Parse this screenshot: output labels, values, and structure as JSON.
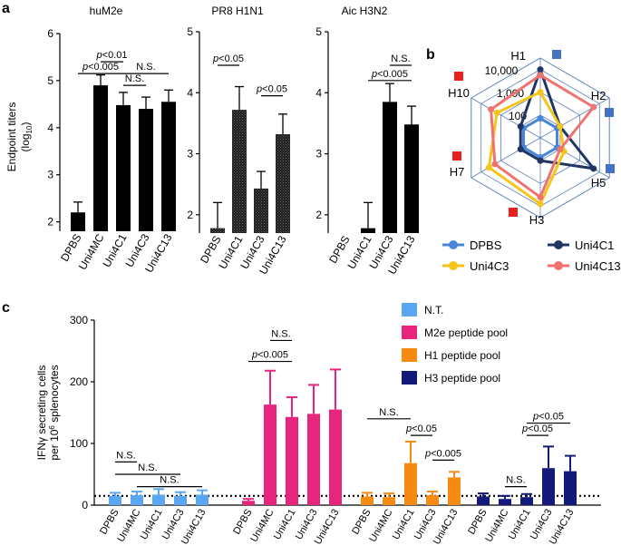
{
  "chart_data": [
    {
      "panel": "a",
      "type": "bar",
      "title": "huM2e",
      "ylabel_line1": "Endpoint titers",
      "ylabel_line2": "(log",
      "ylabel_sub": "10",
      "ylabel_end": ")",
      "ylim": [
        1.8,
        6
      ],
      "yticks": [
        2,
        3,
        4,
        5,
        6
      ],
      "categories": [
        "DPBS",
        "Uni4MC",
        "Uni4C1",
        "Uni4C3",
        "Uni4C13"
      ],
      "values": [
        2.2,
        4.9,
        4.48,
        4.4,
        4.55
      ],
      "errors": [
        0.22,
        0.22,
        0.27,
        0.25,
        0.25
      ],
      "fill": "solid",
      "annotations": [
        {
          "text": "p<0.01",
          "from": 1,
          "to": 2,
          "y": 5.4
        },
        {
          "text": "p<0.005",
          "from": 0,
          "to": 2,
          "y": 5.15
        },
        {
          "text": "N.S.",
          "from": 2,
          "to": 4,
          "y": 5.15
        },
        {
          "text": "N.S.",
          "from": 2,
          "to": 3,
          "y": 4.9
        }
      ]
    },
    {
      "panel": "a",
      "type": "bar",
      "title": "PR8 H1N1",
      "ylim": [
        1.7,
        5
      ],
      "yticks": [
        2,
        3,
        4,
        5
      ],
      "categories": [
        "DPBS",
        "Uni4C1",
        "Uni4C3",
        "Uni4C13"
      ],
      "values": [
        1.78,
        3.72,
        2.43,
        3.32
      ],
      "errors": [
        0.42,
        0.38,
        0.28,
        0.33
      ],
      "fill": "hatched",
      "annotations": [
        {
          "text": "p<0.05",
          "from": 0,
          "to": 1,
          "y": 4.45
        },
        {
          "text": "p<0.05",
          "from": 2,
          "to": 3,
          "y": 3.95
        }
      ]
    },
    {
      "panel": "a",
      "type": "bar",
      "title": "Aic H3N2",
      "ylim": [
        1.7,
        5
      ],
      "yticks": [
        2,
        3,
        4,
        5
      ],
      "categories": [
        "DPBS",
        "Uni4C1",
        "Uni4C3",
        "Uni4C13"
      ],
      "values": [
        1.7,
        1.78,
        3.85,
        3.48
      ],
      "errors": [
        0,
        0.42,
        0.3,
        0.3
      ],
      "fill": "solid",
      "annotations": [
        {
          "text": "p<0.005",
          "from": 1,
          "to": 3,
          "y": 4.2
        },
        {
          "text": "N.S.",
          "from": 2,
          "to": 3,
          "y": 4.45
        }
      ]
    },
    {
      "panel": "b",
      "type": "radar",
      "axes": [
        "H1",
        "H2",
        "H5",
        "H3",
        "H7",
        "H10"
      ],
      "axis_markers": [
        "#4472c4",
        "#4472c4",
        "#4472c4",
        "#e8211f",
        "#e8211f",
        "#e8211f"
      ],
      "rings": [
        "100",
        "1,000",
        "10,000"
      ],
      "ring_log_values": [
        2,
        3,
        4
      ],
      "log_range": [
        1,
        4.5
      ],
      "series": [
        {
          "name": "DPBS",
          "color": "#4a86d9",
          "values_log10": [
            1.85,
            1.85,
            1.85,
            1.85,
            1.85,
            1.85
          ]
        },
        {
          "name": "Uni4C1",
          "color": "#1f3564",
          "values_log10": [
            4.0,
            2.0,
            3.7,
            2.0,
            2.0,
            2.0
          ]
        },
        {
          "name": "Uni4C3",
          "color": "#f5c518",
          "values_log10": [
            3.0,
            2.0,
            2.2,
            3.9,
            3.6,
            3.2
          ]
        },
        {
          "name": "Uni4C13",
          "color": "#ef7370",
          "values_log10": [
            3.75,
            3.7,
            2.0,
            3.6,
            3.3,
            3.5
          ]
        }
      ]
    },
    {
      "panel": "c",
      "type": "bar",
      "ylabel_line1": "IFNγ secreting cells",
      "ylabel_line2": "per 10",
      "ylabel_sup": "6",
      "ylabel_end": " splenocytes",
      "ylim": [
        0,
        300
      ],
      "yticks": [
        0,
        100,
        200,
        300
      ],
      "baseline": 15,
      "legend": [
        {
          "name": "N.T.",
          "color": "#5aa6f0"
        },
        {
          "name": "M2e peptide pool",
          "color": "#e8257c"
        },
        {
          "name": "H1 peptide pool",
          "color": "#f58b12"
        },
        {
          "name": "H3 peptide pool",
          "color": "#141a7a"
        }
      ],
      "groups": [
        {
          "name": "N.T.",
          "color": "#5aa6f0",
          "categories": [
            "DPBS",
            "Uni4MC",
            "Uni4C1",
            "Uni4C3",
            "Uni4C13"
          ],
          "values": [
            15,
            16,
            17,
            15,
            17
          ],
          "errors": [
            5,
            6,
            9,
            6,
            7
          ],
          "annotations": [
            {
              "text": "N.S.",
              "from": 0,
              "to": 1,
              "y": 70
            },
            {
              "text": "N.S.",
              "from": 0,
              "to": 3,
              "y": 50
            },
            {
              "text": "N.S.",
              "from": 1,
              "to": 4,
              "y": 30
            }
          ]
        },
        {
          "name": "M2e peptide pool",
          "color": "#e8257c",
          "categories": [
            "DPBS",
            "Uni4MC",
            "Uni4C1",
            "Uni4C3",
            "Uni4C13"
          ],
          "values": [
            7,
            163,
            143,
            148,
            155
          ],
          "errors": [
            3,
            55,
            32,
            47,
            65
          ],
          "annotations": [
            {
              "text": "p<0.005",
              "from": 0,
              "to": 2,
              "y": 233
            },
            {
              "text": "N.S.",
              "from": 1,
              "to": 2,
              "y": 267
            }
          ]
        },
        {
          "name": "H1 peptide pool",
          "color": "#f58b12",
          "categories": [
            "DPBS",
            "Uni4MC",
            "Uni4C1",
            "Uni4C3",
            "Uni4C13"
          ],
          "values": [
            14,
            13,
            68,
            16,
            45
          ],
          "errors": [
            6,
            6,
            35,
            6,
            9
          ],
          "annotations": [
            {
              "text": "N.S.",
              "from": 0,
              "to": 2,
              "y": 140
            },
            {
              "text": "p<0.05",
              "from": 2,
              "to": 3,
              "y": 113
            },
            {
              "text": "p<0.005",
              "from": 3,
              "to": 4,
              "y": 73
            }
          ]
        },
        {
          "name": "H3 peptide pool",
          "color": "#141a7a",
          "categories": [
            "DPBS",
            "Uni4MC",
            "Uni4C1",
            "Uni4C3",
            "Uni4C13"
          ],
          "values": [
            14,
            10,
            13,
            60,
            55
          ],
          "errors": [
            5,
            5,
            5,
            35,
            25
          ],
          "annotations": [
            {
              "text": "N.S.",
              "from": 1,
              "to": 2,
              "y": 30
            },
            {
              "text": "p<0.05",
              "from": 2,
              "to": 3,
              "y": 113
            },
            {
              "text": "p<0.05",
              "from": 2,
              "to": 4,
              "y": 133
            }
          ]
        }
      ]
    }
  ],
  "panel_labels": {
    "a": "a",
    "b": "b",
    "c": "c"
  }
}
